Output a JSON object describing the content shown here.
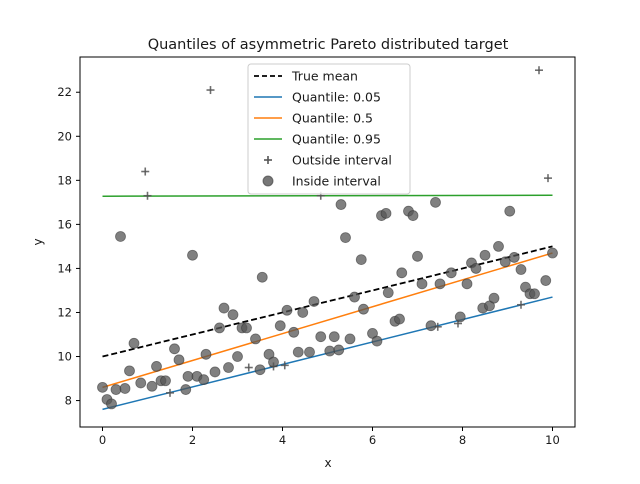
{
  "chart_data": {
    "type": "scatter",
    "title": "Quantiles of asymmetric Pareto distributed target",
    "xlabel": "x",
    "ylabel": "y",
    "xlim": [
      -0.5,
      10.5
    ],
    "ylim": [
      6.8,
      23.6
    ],
    "xticks": [
      0,
      2,
      4,
      6,
      8,
      10
    ],
    "yticks": [
      8,
      10,
      12,
      14,
      16,
      18,
      20,
      22
    ],
    "grid": false,
    "legend_position": "upper center",
    "legend": [
      "True mean",
      "Quantile: 0.05",
      "Quantile: 0.5",
      "Quantile: 0.95",
      "Outside interval",
      "Inside interval"
    ],
    "lines": [
      {
        "name": "True mean",
        "color": "#000000",
        "style": "dashed",
        "x": [
          0,
          10
        ],
        "y": [
          10.0,
          15.0
        ]
      },
      {
        "name": "Quantile: 0.05",
        "color": "#1f77b4",
        "style": "solid",
        "x": [
          0,
          10
        ],
        "y": [
          7.6,
          12.7
        ]
      },
      {
        "name": "Quantile: 0.5",
        "color": "#ff7f0e",
        "style": "solid",
        "x": [
          0,
          10
        ],
        "y": [
          8.6,
          14.7
        ]
      },
      {
        "name": "Quantile: 0.95",
        "color": "#2ca02c",
        "style": "solid",
        "x": [
          0,
          10
        ],
        "y": [
          17.28,
          17.32
        ]
      }
    ],
    "series": [
      {
        "name": "Outside interval",
        "marker": "+",
        "color": "#555555",
        "points": [
          [
            0.95,
            18.4
          ],
          [
            1.0,
            17.3
          ],
          [
            2.4,
            22.1
          ],
          [
            4.85,
            17.3
          ],
          [
            9.7,
            23.0
          ],
          [
            9.9,
            18.1
          ],
          [
            1.5,
            8.35
          ],
          [
            3.25,
            9.5
          ],
          [
            3.8,
            9.55
          ],
          [
            4.05,
            9.6
          ],
          [
            7.45,
            11.35
          ],
          [
            7.9,
            11.5
          ],
          [
            9.3,
            12.35
          ]
        ]
      },
      {
        "name": "Inside interval",
        "marker": "o",
        "color": "#555555",
        "points": [
          [
            0.0,
            8.6
          ],
          [
            0.1,
            8.05
          ],
          [
            0.2,
            7.85
          ],
          [
            0.3,
            8.5
          ],
          [
            0.4,
            15.45
          ],
          [
            0.5,
            8.55
          ],
          [
            0.6,
            9.35
          ],
          [
            0.7,
            10.6
          ],
          [
            0.85,
            8.8
          ],
          [
            1.1,
            8.65
          ],
          [
            1.2,
            9.55
          ],
          [
            1.3,
            8.9
          ],
          [
            1.4,
            8.9
          ],
          [
            1.6,
            10.35
          ],
          [
            1.7,
            9.85
          ],
          [
            1.85,
            8.5
          ],
          [
            1.9,
            9.1
          ],
          [
            2.0,
            14.6
          ],
          [
            2.1,
            9.1
          ],
          [
            2.25,
            8.95
          ],
          [
            2.3,
            10.1
          ],
          [
            2.5,
            9.3
          ],
          [
            2.6,
            11.3
          ],
          [
            2.7,
            12.2
          ],
          [
            2.8,
            9.5
          ],
          [
            2.9,
            11.9
          ],
          [
            3.0,
            10.0
          ],
          [
            3.1,
            11.3
          ],
          [
            3.2,
            11.3
          ],
          [
            3.4,
            10.8
          ],
          [
            3.5,
            9.4
          ],
          [
            3.55,
            13.6
          ],
          [
            3.7,
            10.1
          ],
          [
            3.8,
            9.75
          ],
          [
            3.95,
            11.4
          ],
          [
            4.1,
            12.1
          ],
          [
            4.25,
            11.1
          ],
          [
            4.35,
            10.2
          ],
          [
            4.45,
            12.0
          ],
          [
            4.6,
            10.2
          ],
          [
            4.7,
            12.5
          ],
          [
            4.85,
            10.9
          ],
          [
            5.05,
            10.25
          ],
          [
            5.15,
            10.9
          ],
          [
            5.25,
            10.3
          ],
          [
            5.3,
            16.9
          ],
          [
            5.4,
            15.4
          ],
          [
            5.5,
            10.8
          ],
          [
            5.6,
            12.7
          ],
          [
            5.75,
            14.4
          ],
          [
            5.8,
            12.15
          ],
          [
            6.0,
            11.05
          ],
          [
            6.1,
            10.7
          ],
          [
            6.2,
            16.4
          ],
          [
            6.3,
            16.5
          ],
          [
            6.35,
            12.9
          ],
          [
            6.5,
            11.6
          ],
          [
            6.6,
            11.7
          ],
          [
            6.65,
            13.8
          ],
          [
            6.8,
            16.6
          ],
          [
            6.9,
            16.4
          ],
          [
            7.0,
            14.55
          ],
          [
            7.1,
            13.3
          ],
          [
            7.3,
            11.4
          ],
          [
            7.4,
            17.0
          ],
          [
            7.5,
            13.3
          ],
          [
            7.75,
            13.8
          ],
          [
            7.95,
            11.8
          ],
          [
            8.1,
            13.3
          ],
          [
            8.2,
            14.25
          ],
          [
            8.3,
            14.0
          ],
          [
            8.45,
            12.2
          ],
          [
            8.5,
            14.6
          ],
          [
            8.6,
            12.3
          ],
          [
            8.7,
            12.65
          ],
          [
            8.8,
            15.0
          ],
          [
            8.95,
            14.3
          ],
          [
            9.05,
            16.6
          ],
          [
            9.15,
            14.5
          ],
          [
            9.3,
            13.95
          ],
          [
            9.4,
            13.15
          ],
          [
            9.5,
            12.85
          ],
          [
            9.6,
            12.85
          ],
          [
            9.85,
            13.45
          ],
          [
            10.0,
            14.7
          ]
        ]
      }
    ]
  }
}
